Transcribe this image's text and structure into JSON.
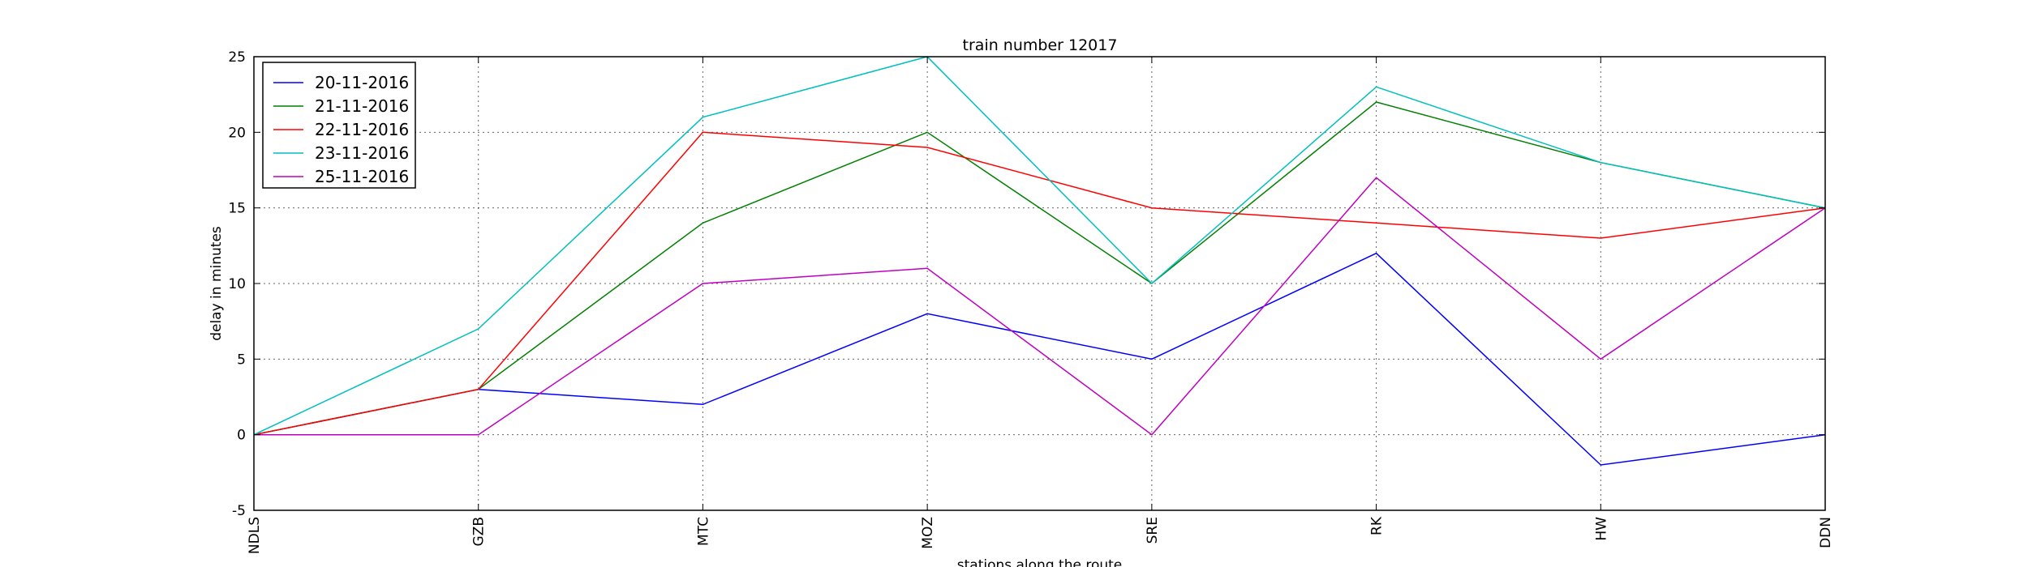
{
  "chart_data": {
    "type": "line",
    "title": "train number 12017",
    "xlabel": "stations along the route",
    "ylabel": "delay in minutes",
    "categories": [
      "NDLS",
      "GZB",
      "MTC",
      "MOZ",
      "SRE",
      "RK",
      "HW",
      "DDN"
    ],
    "ylim": [
      -5,
      25
    ],
    "yticks": [
      -5,
      0,
      5,
      10,
      15,
      20,
      25
    ],
    "grid": true,
    "legend_position": "top-left",
    "series": [
      {
        "name": "20-11-2016",
        "color": "#0000ff",
        "values": [
          0,
          3,
          2,
          8,
          5,
          12,
          -2,
          0
        ]
      },
      {
        "name": "21-11-2016",
        "color": "#008000",
        "values": [
          0,
          3,
          14,
          20,
          10,
          22,
          18,
          15
        ]
      },
      {
        "name": "22-11-2016",
        "color": "#ff0000",
        "values": [
          0,
          3,
          20,
          19,
          15,
          14,
          13,
          15
        ]
      },
      {
        "name": "23-11-2016",
        "color": "#00bfbf",
        "values": [
          0,
          7,
          21,
          25,
          10,
          23,
          18,
          15
        ]
      },
      {
        "name": "25-11-2016",
        "color": "#bf00bf",
        "values": [
          0,
          0,
          10,
          11,
          0,
          17,
          5,
          15
        ]
      }
    ]
  }
}
